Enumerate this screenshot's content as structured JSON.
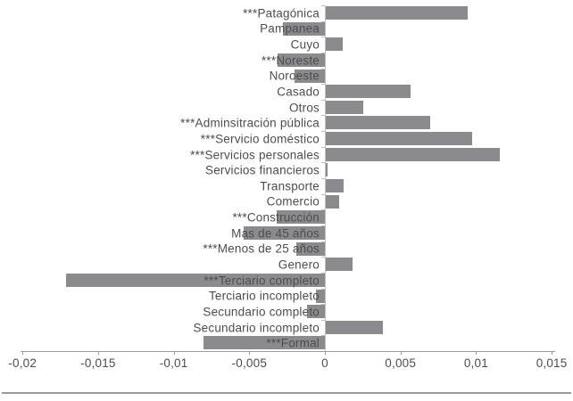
{
  "chart_data": {
    "type": "bar",
    "orientation": "horizontal",
    "title": "",
    "xlabel": "",
    "ylabel": "",
    "grid": false,
    "legend_position": "none",
    "categories": [
      "***Patagónica",
      "Pampanea",
      "Cuyo",
      "***Noreste",
      "Noroeste",
      "Casado",
      "Otros",
      "***Adminsitración pública",
      "***Servicio doméstico",
      "***Servicios personales",
      "Servicios financieros",
      "Transporte",
      "Comercio",
      "***Construcción",
      "Mas de 45 años",
      "***Menos de 25 años",
      "Genero",
      "***Terciario completo",
      "Terciario incompleto",
      "Secundario completo",
      "Secundario incompleto",
      "***Formal"
    ],
    "values": [
      0.0094,
      -0.0028,
      0.0011,
      -0.0031,
      -0.002,
      0.0056,
      0.0025,
      0.0069,
      0.0097,
      0.0115,
      0.0001,
      0.0012,
      0.0009,
      -0.0032,
      -0.0054,
      -0.0019,
      0.0018,
      -0.0171,
      -0.0006,
      -0.0012,
      0.0038,
      -0.008
    ],
    "xlim": [
      -0.02,
      0.015
    ],
    "x_tick_labels": [
      "-0,02",
      "-0,015",
      "-0,01",
      "-0,005",
      "0",
      "0,005",
      "0,01",
      "0,015"
    ],
    "x_tick_values": [
      -0.02,
      -0.015,
      -0.01,
      -0.005,
      0,
      0.005,
      0.01,
      0.015
    ],
    "colors": {
      "bar_fill": "#8b8b8e",
      "label_text": "#4d4d4d",
      "tick_text": "#4d4d4d",
      "axis_line": "#9b9b9b",
      "zero_axis_line": "#c0c0c0",
      "bottom_divider": "#9a9a9a",
      "background": "#ffffff"
    }
  }
}
